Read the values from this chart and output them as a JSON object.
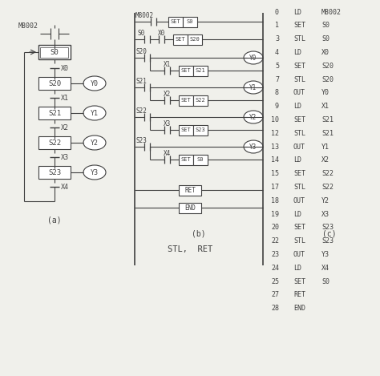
{
  "bg_color": "#f0f0eb",
  "line_color": "#404040",
  "title": "STL,  RET",
  "subtitle_a": "(a)",
  "subtitle_b": "(b)",
  "subtitle_c": "(c)",
  "stl_instructions": [
    [
      0,
      "LD",
      "M8002"
    ],
    [
      1,
      "SET",
      "S0"
    ],
    [
      3,
      "STL",
      "S0"
    ],
    [
      4,
      "LD",
      "X0"
    ],
    [
      5,
      "SET",
      "S20"
    ],
    [
      7,
      "STL",
      "S20"
    ],
    [
      8,
      "OUT",
      "Y0"
    ],
    [
      9,
      "LD",
      "X1"
    ],
    [
      10,
      "SET",
      "S21"
    ],
    [
      12,
      "STL",
      "S21"
    ],
    [
      13,
      "OUT",
      "Y1"
    ],
    [
      14,
      "LD",
      "X2"
    ],
    [
      15,
      "SET",
      "S22"
    ],
    [
      17,
      "STL",
      "S22"
    ],
    [
      18,
      "OUT",
      "Y2"
    ],
    [
      19,
      "LD",
      "X3"
    ],
    [
      20,
      "SET",
      "S23"
    ],
    [
      22,
      "STL",
      "S23"
    ],
    [
      23,
      "OUT",
      "Y3"
    ],
    [
      24,
      "LD",
      "X4"
    ],
    [
      25,
      "SET",
      "S0"
    ],
    [
      27,
      "RET",
      ""
    ],
    [
      28,
      "END",
      ""
    ]
  ]
}
